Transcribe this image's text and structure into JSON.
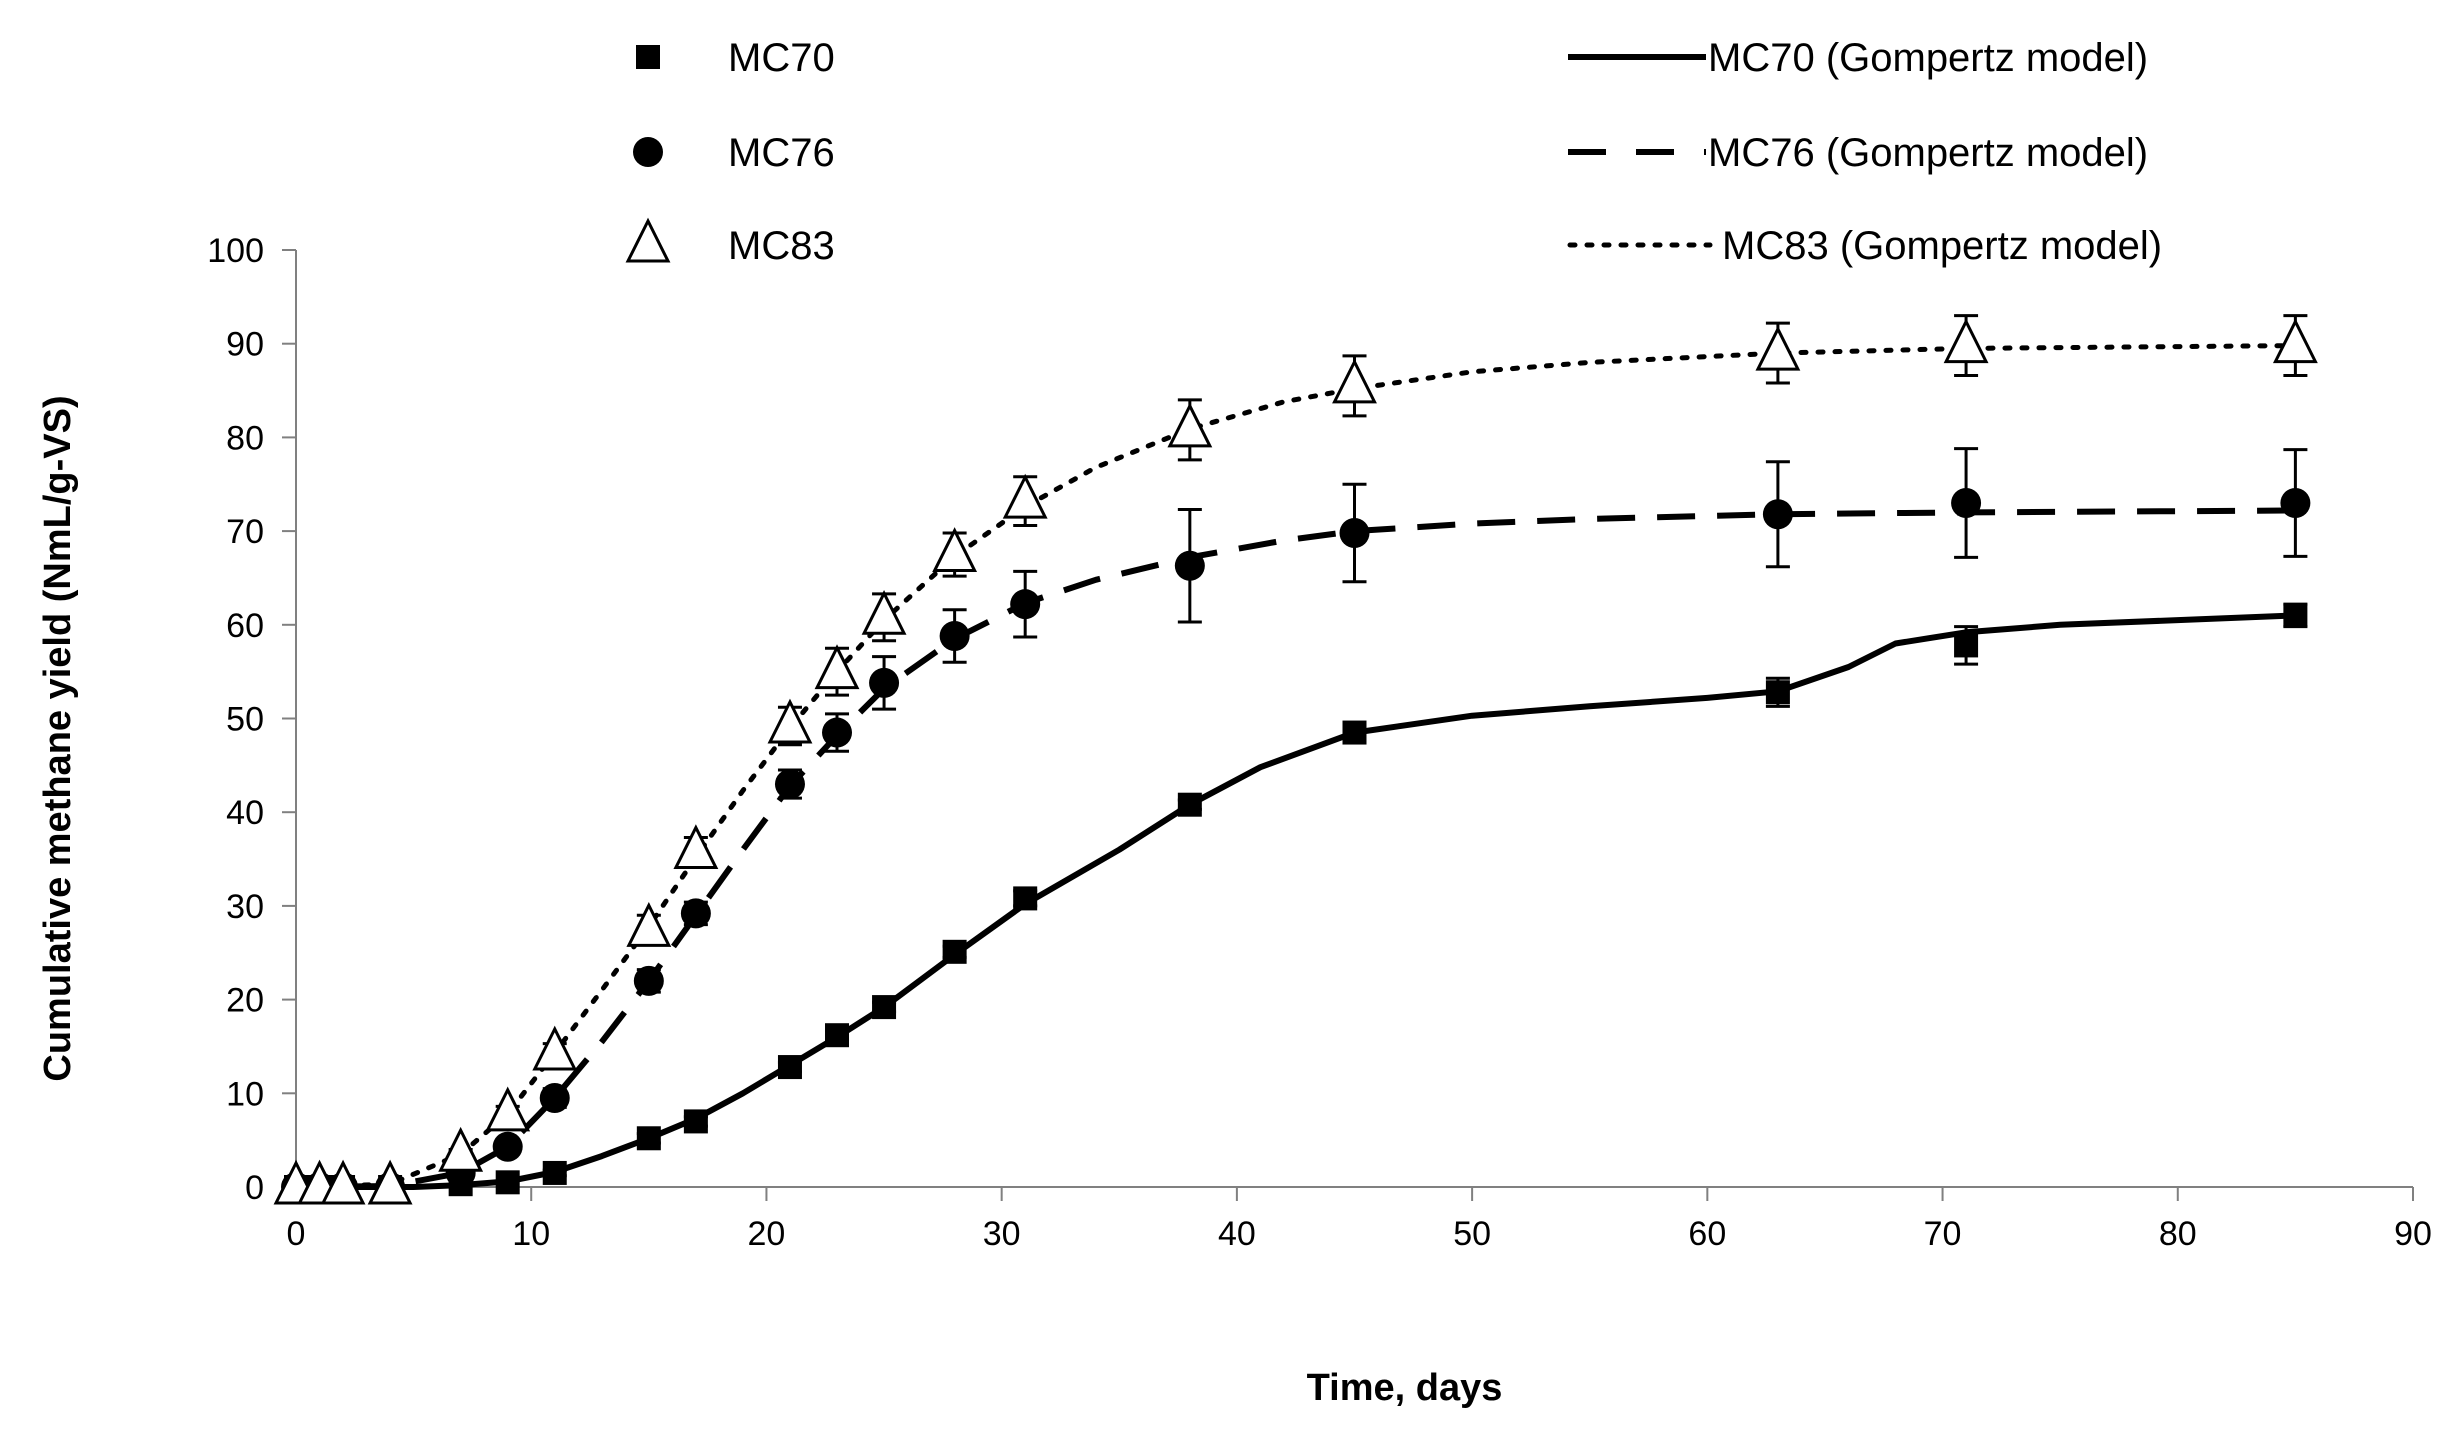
{
  "chart_data": {
    "type": "scatter",
    "title": "",
    "xlabel": "Time, days",
    "ylabel": "Cumulative methane yield (NmL/g-VS)",
    "xlim": [
      0,
      90
    ],
    "ylim": [
      0,
      100
    ],
    "xticks": [
      0,
      10,
      20,
      30,
      40,
      50,
      60,
      70,
      80,
      90
    ],
    "yticks": [
      0,
      10,
      20,
      30,
      40,
      50,
      60,
      70,
      80,
      90,
      100
    ],
    "grid": false,
    "legend_position": "top",
    "series": [
      {
        "name": "MC70",
        "marker": "square",
        "x": [
          0,
          1,
          2,
          4,
          7,
          9,
          11,
          15,
          17,
          21,
          23,
          25,
          28,
          31,
          38,
          45,
          63,
          71,
          85
        ],
        "y": [
          0,
          0,
          0,
          0,
          0.3,
          0.5,
          1.5,
          5.2,
          7,
          12.8,
          16.2,
          19.2,
          25.1,
          30.8,
          40.8,
          48.5,
          52.8,
          57.8,
          61
        ],
        "err": [
          0,
          0,
          0,
          0,
          0,
          0,
          0.3,
          0.5,
          0.5,
          0.5,
          0.5,
          0.5,
          0.6,
          0.8,
          0.5,
          0.8,
          1.5,
          2.0,
          1.2
        ]
      },
      {
        "name": "MC76",
        "marker": "circle",
        "x": [
          0,
          1,
          2,
          4,
          7,
          9,
          11,
          15,
          17,
          21,
          23,
          25,
          28,
          31,
          38,
          45,
          63,
          71,
          85
        ],
        "y": [
          0,
          0,
          0,
          0,
          1.5,
          4.3,
          9.5,
          22,
          29.2,
          43,
          48.5,
          53.8,
          58.8,
          62.2,
          66.3,
          69.8,
          71.8,
          73,
          73
        ],
        "err": [
          0,
          0,
          0,
          0,
          0.5,
          0.8,
          1,
          1.2,
          1.2,
          1.5,
          2,
          2.8,
          2.8,
          3.5,
          6,
          5.2,
          5.6,
          5.8,
          5.7
        ]
      },
      {
        "name": "MC83",
        "marker": "triangle-open",
        "x": [
          0,
          1,
          2,
          4,
          7,
          9,
          11,
          15,
          17,
          21,
          23,
          25,
          28,
          31,
          38,
          45,
          63,
          71,
          85
        ],
        "y": [
          0,
          0,
          0,
          0,
          3.5,
          7.8,
          14.3,
          27.5,
          35.8,
          49.2,
          55,
          60.8,
          67.5,
          73.2,
          80.8,
          85.5,
          89,
          89.8,
          89.8
        ],
        "err": [
          0,
          0,
          0,
          0,
          0.5,
          0.8,
          1,
          1.5,
          1.5,
          2,
          2.5,
          2.5,
          2.3,
          2.6,
          3.2,
          3.2,
          3.2,
          3.2,
          3.2
        ]
      },
      {
        "name": "MC70 (Gompertz model)",
        "line": "solid",
        "x": [
          0,
          5,
          7,
          9,
          11,
          13,
          15,
          17,
          19,
          21,
          23,
          25,
          28,
          31,
          35,
          38,
          41,
          45,
          50,
          55,
          60,
          63,
          66,
          68,
          71,
          75,
          80,
          85
        ],
        "y": [
          0,
          0,
          0.2,
          0.6,
          1.6,
          3.3,
          5.2,
          7.3,
          10,
          13,
          16,
          19.2,
          24.8,
          30.2,
          36,
          40.8,
          44.8,
          48.5,
          50.3,
          51.3,
          52.2,
          52.9,
          55.5,
          58,
          59.2,
          60,
          60.5,
          61
        ]
      },
      {
        "name": "MC76 (Gompertz model)",
        "line": "dashed",
        "x": [
          0,
          4,
          7,
          9,
          11,
          13,
          15,
          17,
          19,
          21,
          23,
          25,
          28,
          31,
          34,
          38,
          42,
          45,
          50,
          55,
          63,
          71,
          85
        ],
        "y": [
          0,
          0.1,
          1.5,
          4.3,
          9.5,
          15.5,
          22,
          29,
          36,
          42.8,
          48.2,
          53.2,
          58.5,
          62.3,
          64.8,
          67.2,
          69,
          70,
          70.8,
          71.3,
          71.8,
          72,
          72.2
        ]
      },
      {
        "name": "MC83 (Gompertz model)",
        "line": "dotted",
        "x": [
          0,
          4,
          7,
          9,
          11,
          13,
          15,
          17,
          19,
          21,
          23,
          25,
          28,
          31,
          34,
          38,
          42,
          45,
          50,
          55,
          63,
          71,
          85
        ],
        "y": [
          0,
          0.3,
          3.5,
          7.8,
          14.3,
          21,
          27.8,
          35.2,
          42.3,
          49,
          55,
          60.5,
          67.3,
          72.6,
          76.8,
          80.9,
          83.8,
          85.2,
          87,
          88,
          89,
          89.5,
          89.8
        ]
      }
    ]
  }
}
